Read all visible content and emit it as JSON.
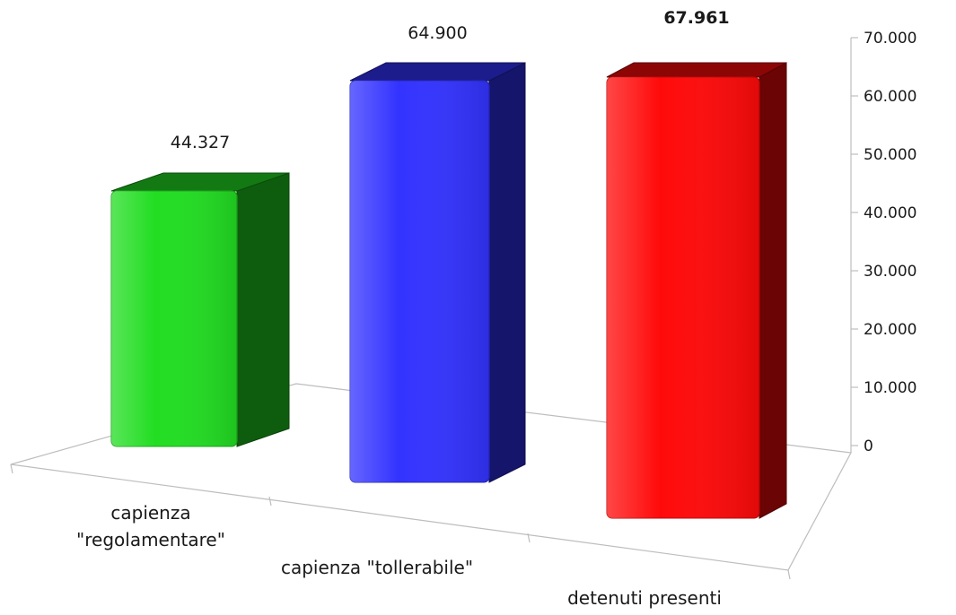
{
  "chart_data": {
    "type": "bar",
    "categories": [
      "capienza \"regolamentare\"",
      "capienza \"tollerabile\"",
      "detenuti presenti"
    ],
    "category_lines": [
      [
        "capienza",
        "\"regolamentare\""
      ],
      [
        "capienza \"tollerabile\""
      ],
      [
        "detenuti presenti"
      ]
    ],
    "values": [
      44327,
      64900,
      67961
    ],
    "value_labels": [
      "44.327",
      "64.900",
      "67.961"
    ],
    "bold_labels": [
      false,
      false,
      true
    ],
    "bar_colors": [
      "#22dd22",
      "#3333ff",
      "#ff0a0a"
    ],
    "ylim": [
      0,
      70000
    ],
    "yticks": [
      0,
      10000,
      20000,
      30000,
      40000,
      50000,
      60000,
      70000
    ],
    "ytick_labels": [
      "0",
      "10.000",
      "20.000",
      "30.000",
      "40.000",
      "50.000",
      "60.000",
      "70.000"
    ],
    "axis_position": "right",
    "grid": false,
    "legend": "none",
    "style": "3d-column"
  }
}
